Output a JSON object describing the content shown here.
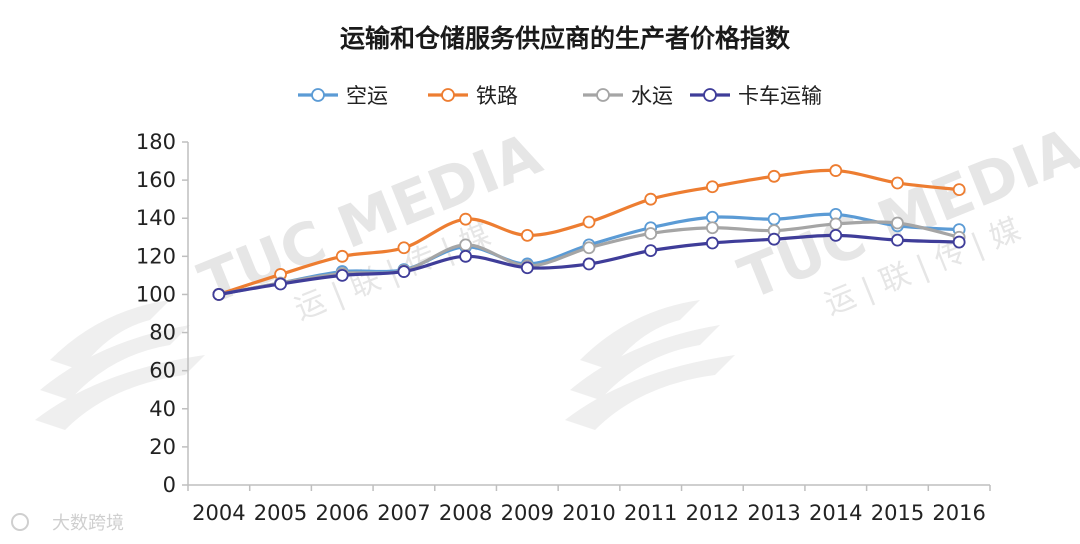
{
  "footer": {
    "text": "大数跨境"
  },
  "watermark": {
    "brand": "TUC MEDIA",
    "sub": "运 | 联 | 传 | 媒"
  },
  "chart_data": {
    "type": "line",
    "title": "运输和仓储服务供应商的生产者价格指数",
    "xlabel": "",
    "ylabel": "",
    "legend_position": "top",
    "grid": false,
    "smooth": true,
    "x": [
      "2004",
      "2005",
      "2006",
      "2007",
      "2008",
      "2009",
      "2010",
      "2011",
      "2012",
      "2013",
      "2014",
      "2015",
      "2016"
    ],
    "ylim": [
      0,
      180
    ],
    "yticks": [
      0,
      20,
      40,
      60,
      80,
      100,
      120,
      140,
      160,
      180
    ],
    "series": [
      {
        "name": "空运",
        "color": "#5b9bd5",
        "values": [
          100,
          106,
          112,
          113,
          125,
          116,
          126,
          135,
          140.5,
          139.5,
          142,
          136,
          134
        ]
      },
      {
        "name": "铁路",
        "color": "#ed7d31",
        "values": [
          100,
          110.5,
          120,
          124.5,
          139.5,
          131,
          138,
          150,
          156.5,
          162,
          165,
          158.5,
          155
        ]
      },
      {
        "name": "水运",
        "color": "#a5a5a5",
        "values": [
          100,
          106,
          111,
          112.5,
          126,
          115,
          124.5,
          132,
          135,
          133.5,
          137,
          137.5,
          130
        ]
      },
      {
        "name": "卡车运输",
        "color": "#3f3d99",
        "values": [
          100,
          105.5,
          110,
          112,
          120,
          114,
          116,
          123,
          127,
          129,
          131,
          128.5,
          127.5
        ]
      }
    ]
  }
}
